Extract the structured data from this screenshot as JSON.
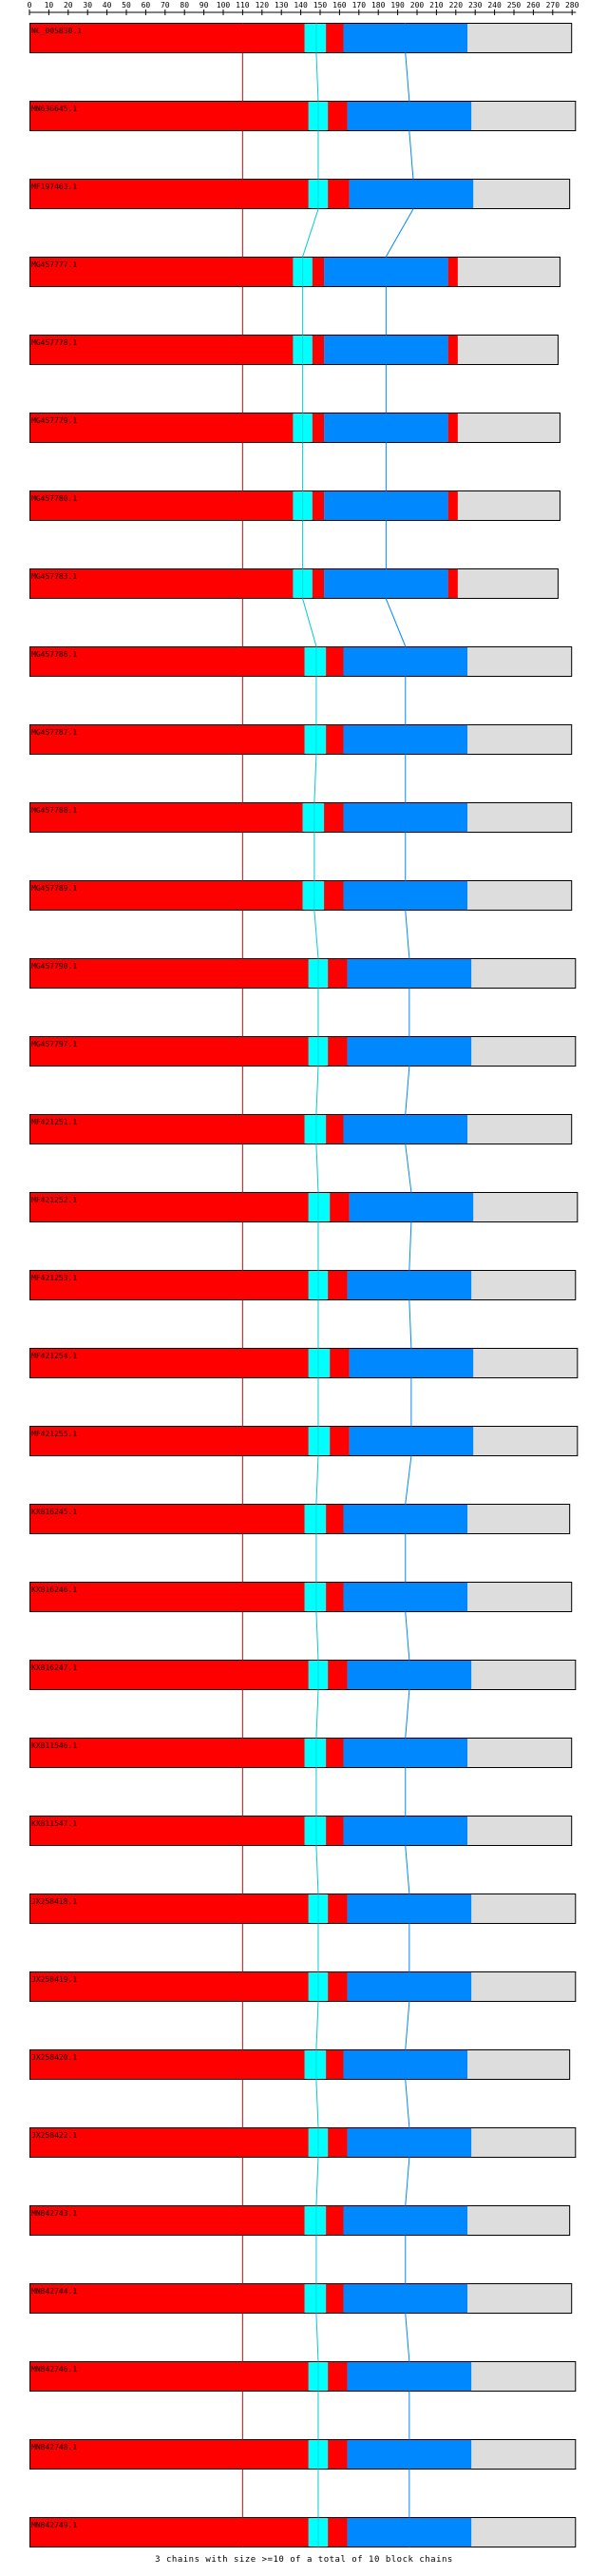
{
  "axis": {
    "ticks": [
      0,
      10,
      20,
      30,
      40,
      50,
      60,
      70,
      80,
      90,
      100,
      110,
      120,
      130,
      140,
      150,
      160,
      170,
      180,
      190,
      200,
      210,
      220,
      230,
      240,
      250,
      260,
      270,
      280
    ],
    "max": 282
  },
  "colors": {
    "block_1": "#ff0000",
    "block_2": "#00ffff",
    "block_3": "#0088ff",
    "unaligned": "#dddddd",
    "border": "#000000",
    "chain_line_red": "#ff0000",
    "chain_line_cyan": "#00cccc",
    "chain_line_blue": "#0088ff"
  },
  "chart_data": {
    "type": "block-alignment",
    "units": "columns",
    "sequences": [
      {
        "name": "NC_005830.1",
        "length": 280,
        "blocks": [
          [
            0,
            142
          ],
          [
            142,
            153
          ],
          [
            153,
            162
          ],
          [
            162,
            226
          ]
        ]
      },
      {
        "name": "MN636645.1",
        "length": 282,
        "blocks": [
          [
            0,
            144
          ],
          [
            144,
            154
          ],
          [
            154,
            164
          ],
          [
            164,
            228
          ]
        ]
      },
      {
        "name": "MF197463.1",
        "length": 279,
        "blocks": [
          [
            0,
            144
          ],
          [
            144,
            154
          ],
          [
            154,
            165
          ],
          [
            165,
            229
          ]
        ]
      },
      {
        "name": "MG457777.1",
        "length": 274,
        "blocks": [
          [
            0,
            136
          ],
          [
            136,
            146
          ],
          [
            146,
            152
          ],
          [
            152,
            216
          ],
          [
            216,
            221
          ]
        ]
      },
      {
        "name": "MG457778.1",
        "length": 273,
        "blocks": [
          [
            0,
            136
          ],
          [
            136,
            146
          ],
          [
            146,
            152
          ],
          [
            152,
            216
          ],
          [
            216,
            221
          ]
        ]
      },
      {
        "name": "MG457779.1",
        "length": 274,
        "blocks": [
          [
            0,
            136
          ],
          [
            136,
            146
          ],
          [
            146,
            152
          ],
          [
            152,
            216
          ],
          [
            216,
            221
          ]
        ]
      },
      {
        "name": "MG457780.1",
        "length": 274,
        "blocks": [
          [
            0,
            136
          ],
          [
            136,
            146
          ],
          [
            146,
            152
          ],
          [
            152,
            216
          ],
          [
            216,
            221
          ]
        ]
      },
      {
        "name": "MG457783.1",
        "length": 273,
        "blocks": [
          [
            0,
            136
          ],
          [
            136,
            146
          ],
          [
            146,
            152
          ],
          [
            152,
            216
          ],
          [
            216,
            221
          ]
        ]
      },
      {
        "name": "MG457786.1",
        "length": 280,
        "blocks": [
          [
            0,
            142
          ],
          [
            142,
            153
          ],
          [
            153,
            162
          ],
          [
            162,
            226
          ]
        ]
      },
      {
        "name": "MG457787.1",
        "length": 280,
        "blocks": [
          [
            0,
            142
          ],
          [
            142,
            153
          ],
          [
            153,
            162
          ],
          [
            162,
            226
          ]
        ]
      },
      {
        "name": "MG457788.1",
        "length": 280,
        "blocks": [
          [
            0,
            141
          ],
          [
            141,
            152
          ],
          [
            152,
            162
          ],
          [
            162,
            226
          ]
        ]
      },
      {
        "name": "MG457789.1",
        "length": 280,
        "blocks": [
          [
            0,
            141
          ],
          [
            141,
            152
          ],
          [
            152,
            162
          ],
          [
            162,
            226
          ]
        ]
      },
      {
        "name": "MG457790.1",
        "length": 282,
        "blocks": [
          [
            0,
            144
          ],
          [
            144,
            154
          ],
          [
            154,
            164
          ],
          [
            164,
            228
          ]
        ]
      },
      {
        "name": "MG457797.1",
        "length": 282,
        "blocks": [
          [
            0,
            144
          ],
          [
            144,
            154
          ],
          [
            154,
            164
          ],
          [
            164,
            228
          ]
        ]
      },
      {
        "name": "MF421251.1",
        "length": 280,
        "blocks": [
          [
            0,
            142
          ],
          [
            142,
            153
          ],
          [
            153,
            162
          ],
          [
            162,
            226
          ]
        ]
      },
      {
        "name": "MF421252.1",
        "length": 283,
        "blocks": [
          [
            0,
            144
          ],
          [
            144,
            155
          ],
          [
            155,
            165
          ],
          [
            165,
            229
          ]
        ]
      },
      {
        "name": "MF421253.1",
        "length": 282,
        "blocks": [
          [
            0,
            144
          ],
          [
            144,
            154
          ],
          [
            154,
            164
          ],
          [
            164,
            228
          ]
        ]
      },
      {
        "name": "MF421254.1",
        "length": 283,
        "blocks": [
          [
            0,
            144
          ],
          [
            144,
            155
          ],
          [
            155,
            165
          ],
          [
            165,
            229
          ]
        ]
      },
      {
        "name": "MF421255.1",
        "length": 283,
        "blocks": [
          [
            0,
            144
          ],
          [
            144,
            155
          ],
          [
            155,
            165
          ],
          [
            165,
            229
          ]
        ]
      },
      {
        "name": "KX816245.1",
        "length": 279,
        "blocks": [
          [
            0,
            142
          ],
          [
            142,
            153
          ],
          [
            153,
            162
          ],
          [
            162,
            226
          ]
        ]
      },
      {
        "name": "KX816246.1",
        "length": 280,
        "blocks": [
          [
            0,
            142
          ],
          [
            142,
            153
          ],
          [
            153,
            162
          ],
          [
            162,
            226
          ]
        ]
      },
      {
        "name": "KX816247.1",
        "length": 282,
        "blocks": [
          [
            0,
            144
          ],
          [
            144,
            154
          ],
          [
            154,
            164
          ],
          [
            164,
            228
          ]
        ]
      },
      {
        "name": "KX811546.1",
        "length": 280,
        "blocks": [
          [
            0,
            142
          ],
          [
            142,
            153
          ],
          [
            153,
            162
          ],
          [
            162,
            226
          ]
        ]
      },
      {
        "name": "KX811547.1",
        "length": 280,
        "blocks": [
          [
            0,
            142
          ],
          [
            142,
            153
          ],
          [
            153,
            162
          ],
          [
            162,
            226
          ]
        ]
      },
      {
        "name": "JX258418.1",
        "length": 282,
        "blocks": [
          [
            0,
            144
          ],
          [
            144,
            154
          ],
          [
            154,
            164
          ],
          [
            164,
            228
          ]
        ]
      },
      {
        "name": "JX258419.1",
        "length": 282,
        "blocks": [
          [
            0,
            144
          ],
          [
            144,
            154
          ],
          [
            154,
            164
          ],
          [
            164,
            228
          ]
        ]
      },
      {
        "name": "JX258420.1",
        "length": 279,
        "blocks": [
          [
            0,
            142
          ],
          [
            142,
            153
          ],
          [
            153,
            162
          ],
          [
            162,
            226
          ]
        ]
      },
      {
        "name": "JX258422.1",
        "length": 282,
        "blocks": [
          [
            0,
            144
          ],
          [
            144,
            154
          ],
          [
            154,
            164
          ],
          [
            164,
            228
          ]
        ]
      },
      {
        "name": "MN842743.1",
        "length": 279,
        "blocks": [
          [
            0,
            142
          ],
          [
            142,
            153
          ],
          [
            153,
            162
          ],
          [
            162,
            226
          ]
        ]
      },
      {
        "name": "MN842744.1",
        "length": 280,
        "blocks": [
          [
            0,
            142
          ],
          [
            142,
            153
          ],
          [
            153,
            162
          ],
          [
            162,
            226
          ]
        ]
      },
      {
        "name": "MN842746.1",
        "length": 282,
        "blocks": [
          [
            0,
            144
          ],
          [
            144,
            154
          ],
          [
            154,
            164
          ],
          [
            164,
            228
          ]
        ]
      },
      {
        "name": "MN842748.1",
        "length": 282,
        "blocks": [
          [
            0,
            144
          ],
          [
            144,
            154
          ],
          [
            154,
            164
          ],
          [
            164,
            228
          ]
        ]
      },
      {
        "name": "MN842749.1",
        "length": 282,
        "blocks": [
          [
            0,
            144
          ],
          [
            144,
            154
          ],
          [
            154,
            164
          ],
          [
            164,
            228
          ]
        ]
      }
    ],
    "chains": [
      {
        "color": "red",
        "columns": [
          110,
          110,
          110,
          110,
          110,
          110,
          110,
          110,
          110,
          110,
          110,
          110,
          110,
          110,
          110,
          110,
          110,
          110,
          110,
          110,
          110,
          110,
          110,
          110,
          110,
          110,
          110,
          110,
          110,
          110,
          110,
          110,
          110
        ]
      },
      {
        "color": "cyan",
        "columns": [
          148,
          149,
          149,
          141,
          141,
          141,
          141,
          141,
          148,
          148,
          147,
          147,
          149,
          149,
          148,
          149,
          149,
          149,
          149,
          148,
          148,
          149,
          148,
          148,
          149,
          149,
          148,
          149,
          148,
          148,
          149,
          149,
          149
        ]
      },
      {
        "color": "blue",
        "columns": [
          194,
          196,
          198,
          184,
          184,
          184,
          184,
          184,
          194,
          194,
          194,
          194,
          196,
          196,
          194,
          197,
          196,
          197,
          197,
          194,
          194,
          196,
          194,
          194,
          196,
          196,
          194,
          196,
          194,
          194,
          196,
          196,
          196
        ]
      }
    ]
  },
  "footer": {
    "text": "3 chains with size >=10 of a total of 10 block chains"
  }
}
